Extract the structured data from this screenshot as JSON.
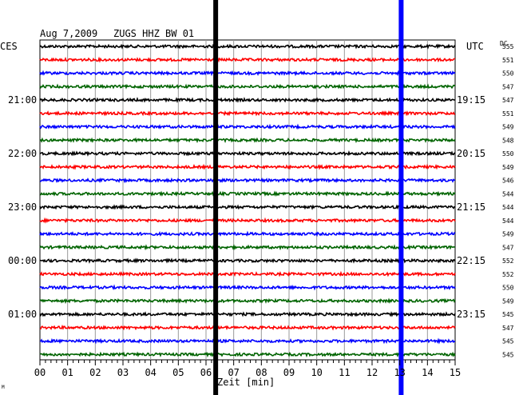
{
  "header": {
    "date": "Aug 7,2009",
    "station": "ZUGS HHZ BW 01",
    "left_zone": "CES",
    "right_zone": "UTC",
    "dc_label": "DC"
  },
  "chart_data": {
    "type": "line",
    "title": "Aug 7,2009   ZUGS HHZ BW 01",
    "xlabel": "Zeit [min]",
    "xlim": [
      0,
      15
    ],
    "x_ticks": [
      "00",
      "01",
      "02",
      "03",
      "04",
      "05",
      "06",
      "07",
      "08",
      "09",
      "10",
      "11",
      "12",
      "13",
      "14",
      "15"
    ],
    "trace_colors": [
      "#000000",
      "#ff0000",
      "#0000ff",
      "#006400"
    ],
    "left_time_labels": [
      {
        "row": 4,
        "label": "21:00"
      },
      {
        "row": 8,
        "label": "22:00"
      },
      {
        "row": 12,
        "label": "23:00"
      },
      {
        "row": 16,
        "label": "00:00"
      },
      {
        "row": 20,
        "label": "01:00"
      }
    ],
    "right_time_labels": [
      {
        "row": 4,
        "label": "19:15"
      },
      {
        "row": 8,
        "label": "20:15"
      },
      {
        "row": 12,
        "label": "21:15"
      },
      {
        "row": 16,
        "label": "22:15"
      },
      {
        "row": 20,
        "label": "23:15"
      }
    ],
    "dc_offsets": [
      555,
      551,
      550,
      547,
      547,
      551,
      549,
      548,
      550,
      549,
      546,
      544,
      544,
      544,
      549,
      547,
      552,
      552,
      550,
      549,
      545,
      547,
      545,
      545
    ],
    "markers": [
      {
        "minute": 6.35,
        "color": "#000000",
        "label": "black vertical marker"
      },
      {
        "minute": 13.05,
        "color": "#0000ff",
        "label": "blue vertical marker"
      }
    ],
    "corner_text": "M"
  }
}
